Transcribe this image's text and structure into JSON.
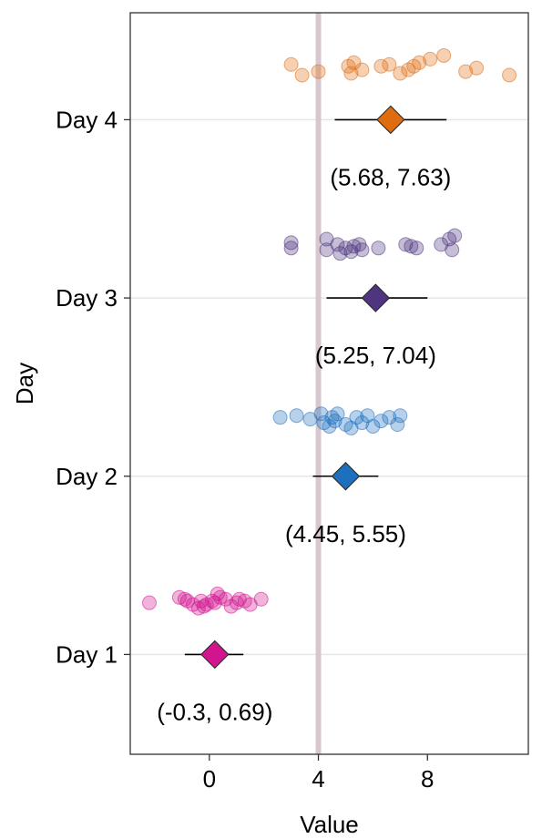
{
  "chart_data": {
    "type": "scatter",
    "title": "",
    "xlabel": "Value",
    "ylabel": "Day",
    "xlim": [
      -2.9,
      11.7
    ],
    "x_ticks": [
      0,
      4,
      8
    ],
    "x_tick_labels": [
      "0",
      "4",
      "8"
    ],
    "grid": "horizontal major lines only",
    "reference_line": {
      "x": 4.0,
      "color": "#d9c7cf"
    },
    "categories": [
      "Day 1",
      "Day 2",
      "Day 3",
      "Day 4"
    ],
    "series": [
      {
        "category": "Day 1",
        "color": "#d0158f",
        "points": [
          {
            "x": -2.2,
            "y": 1.29
          },
          {
            "x": -1.1,
            "y": 1.32
          },
          {
            "x": -0.9,
            "y": 1.31
          },
          {
            "x": -0.8,
            "y": 1.3
          },
          {
            "x": -0.6,
            "y": 1.28
          },
          {
            "x": -0.4,
            "y": 1.26
          },
          {
            "x": -0.3,
            "y": 1.3
          },
          {
            "x": -0.2,
            "y": 1.27
          },
          {
            "x": -0.1,
            "y": 1.28
          },
          {
            "x": 0.1,
            "y": 1.3
          },
          {
            "x": 0.2,
            "y": 1.29
          },
          {
            "x": 0.3,
            "y": 1.34
          },
          {
            "x": 0.4,
            "y": 1.32
          },
          {
            "x": 0.6,
            "y": 1.31
          },
          {
            "x": 0.8,
            "y": 1.27
          },
          {
            "x": 1.0,
            "y": 1.29
          },
          {
            "x": 1.1,
            "y": 1.31
          },
          {
            "x": 1.3,
            "y": 1.3
          },
          {
            "x": 1.5,
            "y": 1.28
          },
          {
            "x": 1.9,
            "y": 1.31
          }
        ],
        "estimate": 0.2,
        "ci": [
          -0.9,
          1.25
        ],
        "ci_label": "(-0.3, 0.69)"
      },
      {
        "category": "Day 2",
        "color": "#1f6fbf",
        "points": [
          {
            "x": 2.6,
            "y": 2.33
          },
          {
            "x": 3.2,
            "y": 2.34
          },
          {
            "x": 3.7,
            "y": 2.32
          },
          {
            "x": 4.1,
            "y": 2.35
          },
          {
            "x": 4.2,
            "y": 2.3
          },
          {
            "x": 4.4,
            "y": 2.28
          },
          {
            "x": 4.5,
            "y": 2.33
          },
          {
            "x": 4.6,
            "y": 2.31
          },
          {
            "x": 4.7,
            "y": 2.35
          },
          {
            "x": 5.0,
            "y": 2.29
          },
          {
            "x": 5.2,
            "y": 2.27
          },
          {
            "x": 5.4,
            "y": 2.33
          },
          {
            "x": 5.6,
            "y": 2.3
          },
          {
            "x": 5.8,
            "y": 2.34
          },
          {
            "x": 6.0,
            "y": 2.28
          },
          {
            "x": 6.3,
            "y": 2.31
          },
          {
            "x": 6.6,
            "y": 2.33
          },
          {
            "x": 6.9,
            "y": 2.29
          },
          {
            "x": 7.0,
            "y": 2.34
          }
        ],
        "estimate": 5.0,
        "ci": [
          3.8,
          6.2
        ],
        "ci_label": "(4.45, 5.55)"
      },
      {
        "category": "Day 3",
        "color": "#4f3580",
        "points": [
          {
            "x": 3.0,
            "y": 3.31
          },
          {
            "x": 3.0,
            "y": 3.28
          },
          {
            "x": 4.3,
            "y": 3.33
          },
          {
            "x": 4.3,
            "y": 3.27
          },
          {
            "x": 4.7,
            "y": 3.3
          },
          {
            "x": 4.8,
            "y": 3.25
          },
          {
            "x": 5.0,
            "y": 3.28
          },
          {
            "x": 5.2,
            "y": 3.26
          },
          {
            "x": 5.3,
            "y": 3.29
          },
          {
            "x": 5.5,
            "y": 3.3
          },
          {
            "x": 5.6,
            "y": 3.27
          },
          {
            "x": 6.2,
            "y": 3.28
          },
          {
            "x": 7.2,
            "y": 3.3
          },
          {
            "x": 7.4,
            "y": 3.29
          },
          {
            "x": 7.6,
            "y": 3.28
          },
          {
            "x": 8.5,
            "y": 3.3
          },
          {
            "x": 8.8,
            "y": 3.33
          },
          {
            "x": 8.9,
            "y": 3.27
          },
          {
            "x": 9.0,
            "y": 3.35
          }
        ],
        "estimate": 6.1,
        "ci": [
          4.3,
          8.0
        ],
        "ci_label": "(5.25, 7.04)"
      },
      {
        "category": "Day 4",
        "color": "#e06c10",
        "points": [
          {
            "x": 3.0,
            "y": 4.31
          },
          {
            "x": 3.4,
            "y": 4.25
          },
          {
            "x": 4.0,
            "y": 4.27
          },
          {
            "x": 5.1,
            "y": 4.3
          },
          {
            "x": 5.2,
            "y": 4.26
          },
          {
            "x": 5.3,
            "y": 4.32
          },
          {
            "x": 5.6,
            "y": 4.28
          },
          {
            "x": 6.3,
            "y": 4.3
          },
          {
            "x": 6.6,
            "y": 4.31
          },
          {
            "x": 7.0,
            "y": 4.26
          },
          {
            "x": 7.3,
            "y": 4.28
          },
          {
            "x": 7.5,
            "y": 4.3
          },
          {
            "x": 7.7,
            "y": 4.32
          },
          {
            "x": 8.1,
            "y": 4.34
          },
          {
            "x": 8.6,
            "y": 4.36
          },
          {
            "x": 9.4,
            "y": 4.27
          },
          {
            "x": 9.8,
            "y": 4.29
          },
          {
            "x": 11.0,
            "y": 4.25
          }
        ],
        "estimate": 6.65,
        "ci": [
          4.6,
          8.7
        ],
        "ci_label": "(5.68, 7.63)"
      }
    ]
  }
}
